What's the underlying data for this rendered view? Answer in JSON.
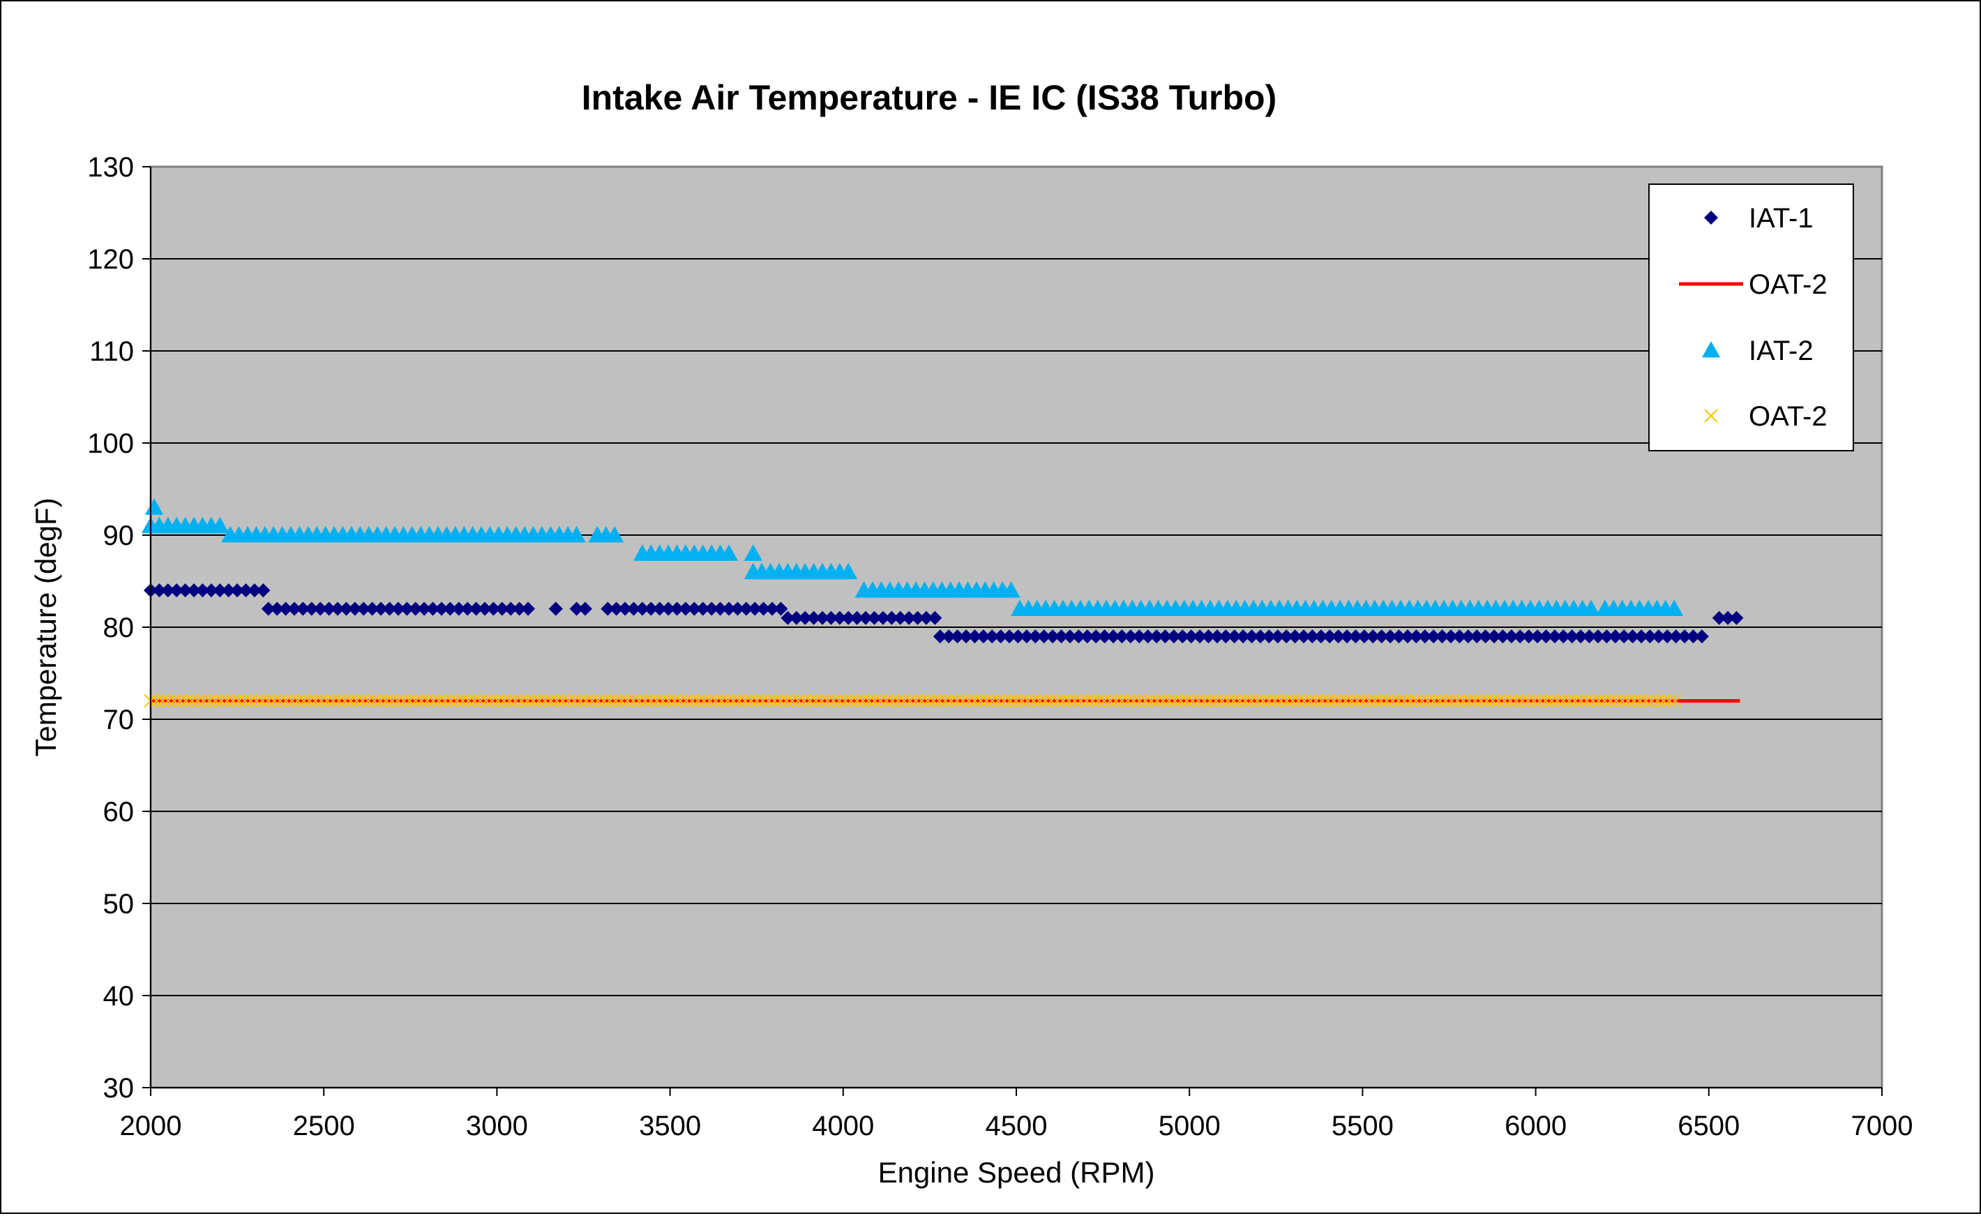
{
  "chart_data": {
    "type": "scatter",
    "title": "Intake Air Temperature - IE IC (IS38 Turbo)",
    "xlabel": "Engine Speed (RPM)",
    "ylabel": "Temperature (degF)",
    "xlim": [
      2000,
      7000
    ],
    "ylim": [
      30,
      130
    ],
    "x_ticks": [
      "2000",
      "2500",
      "3000",
      "3500",
      "4000",
      "4500",
      "5000",
      "5500",
      "6000",
      "6500",
      "7000"
    ],
    "y_ticks": [
      "30",
      "40",
      "50",
      "60",
      "70",
      "80",
      "90",
      "100",
      "110",
      "120",
      "130"
    ],
    "grid": "horizontal",
    "legend_position": "top-right",
    "colors": {
      "plot_background": "#c0c0c0",
      "iat1": "#000080",
      "oat2_line": "#ff0000",
      "iat2": "#00b0f0",
      "oat2_x": "#ffc000"
    },
    "series": [
      {
        "name": "IAT-1",
        "marker": "diamond",
        "x_step": 25,
        "segments": [
          {
            "x_start": 2000,
            "x_end": 2325,
            "y": 84
          },
          {
            "x_start": 2325,
            "x_end": 2340,
            "y": 84
          },
          {
            "x_start": 2340,
            "x_end": 3110,
            "y": 82
          },
          {
            "x_start": 3170,
            "x_end": 3170,
            "y": 82
          },
          {
            "x_start": 3230,
            "x_end": 3270,
            "y": 82
          },
          {
            "x_start": 3320,
            "x_end": 3820,
            "y": 82
          },
          {
            "x_start": 3840,
            "x_end": 4265,
            "y": 81
          },
          {
            "x_start": 4280,
            "x_end": 6500,
            "y": 79
          },
          {
            "x_start": 6530,
            "x_end": 6590,
            "y": 81
          }
        ]
      },
      {
        "name": "OAT-2",
        "marker": "line",
        "segments": [
          {
            "x_start": 2000,
            "x_end": 6590,
            "y": 72
          }
        ]
      },
      {
        "name": "IAT-2",
        "marker": "triangle",
        "x_step": 25,
        "segments": [
          {
            "x_start": 2010,
            "x_end": 2010,
            "y": 93
          },
          {
            "x_start": 2000,
            "x_end": 2210,
            "y": 91
          },
          {
            "x_start": 2230,
            "x_end": 3240,
            "y": 90
          },
          {
            "x_start": 3290,
            "x_end": 3360,
            "y": 90
          },
          {
            "x_start": 3420,
            "x_end": 3690,
            "y": 88
          },
          {
            "x_start": 3740,
            "x_end": 3740,
            "y": 88
          },
          {
            "x_start": 3740,
            "x_end": 4030,
            "y": 86
          },
          {
            "x_start": 4060,
            "x_end": 4490,
            "y": 84
          },
          {
            "x_start": 4510,
            "x_end": 6160,
            "y": 82
          },
          {
            "x_start": 6200,
            "x_end": 6410,
            "y": 82
          }
        ]
      },
      {
        "name": "OAT-2",
        "marker": "x",
        "x_step": 17,
        "segments": [
          {
            "x_start": 2000,
            "x_end": 6410,
            "y": 72
          }
        ]
      }
    ]
  }
}
